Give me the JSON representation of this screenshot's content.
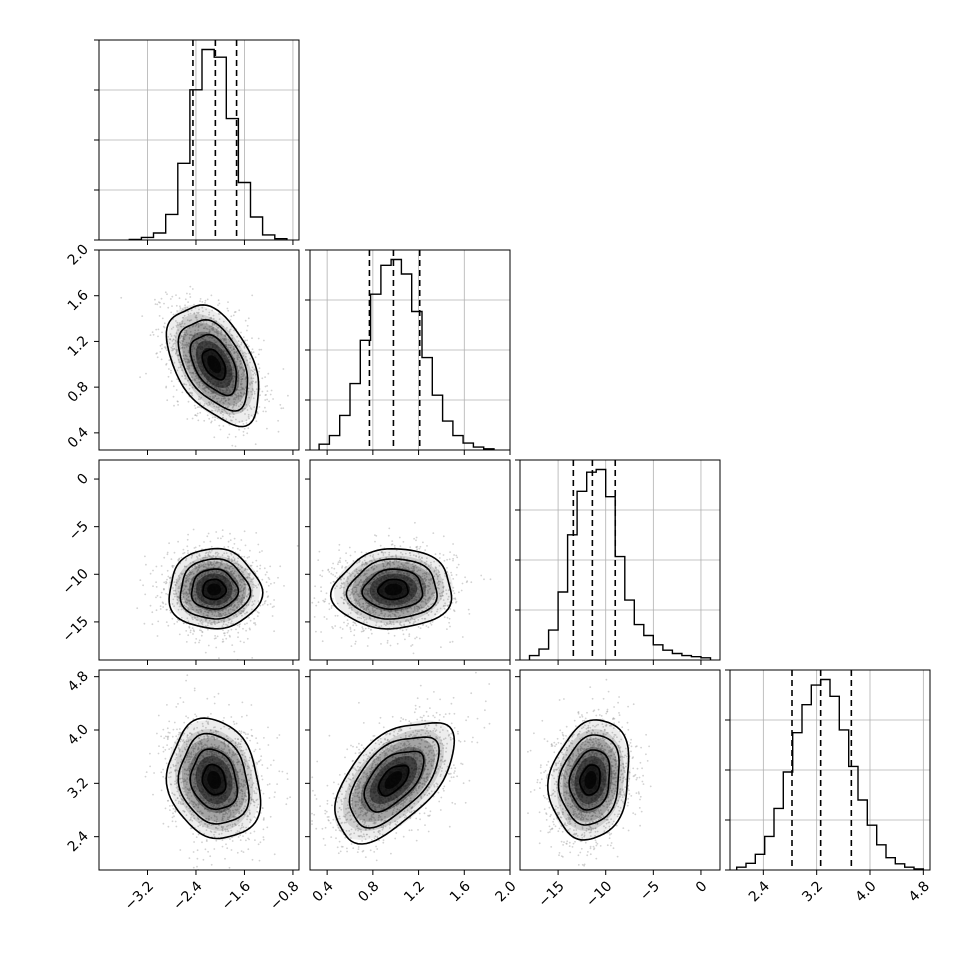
{
  "chart_data": {
    "type": "corner",
    "title": "",
    "grid": true,
    "n_params": 4,
    "params": [
      {
        "range": [
          -4.0,
          -0.7
        ],
        "ticks": [
          -3.2,
          -2.4,
          -1.6,
          -0.8
        ],
        "tick_labels": [
          "−3.2",
          "−2.4",
          "−1.6",
          "−0.8"
        ],
        "quantiles": [
          -2.45,
          -2.08,
          -1.73
        ]
      },
      {
        "range": [
          0.25,
          2.0
        ],
        "ticks": [
          0.4,
          0.8,
          1.2,
          1.6,
          2.0
        ],
        "tick_labels": [
          "0.4",
          "0.8",
          "1.2",
          "1.6",
          "2.0"
        ],
        "quantiles": [
          0.77,
          0.98,
          1.21
        ]
      },
      {
        "range": [
          -19.0,
          2.0
        ],
        "ticks": [
          -15,
          -10,
          -5,
          0
        ],
        "tick_labels": [
          "−15",
          "−10",
          "−5",
          "0"
        ],
        "quantiles": [
          -13.4,
          -11.4,
          -9.0
        ]
      },
      {
        "range": [
          1.9,
          4.9
        ],
        "ticks": [
          2.4,
          3.2,
          4.0,
          4.8
        ],
        "tick_labels": [
          "2.4",
          "3.2",
          "4.0",
          "4.8"
        ],
        "quantiles": [
          2.83,
          3.26,
          3.72
        ]
      }
    ],
    "histograms": [
      {
        "param": 0,
        "edges": [
          -3.5,
          -3.3,
          -3.1,
          -2.9,
          -2.7,
          -2.5,
          -2.3,
          -2.1,
          -1.9,
          -1.7,
          -1.5,
          -1.3,
          -1.1,
          -0.9
        ],
        "counts": [
          1,
          4,
          11,
          40,
          120,
          235,
          298,
          286,
          190,
          90,
          36,
          8,
          2
        ]
      },
      {
        "param": 1,
        "edges": [
          0.33,
          0.42,
          0.51,
          0.6,
          0.69,
          0.78,
          0.87,
          0.96,
          1.05,
          1.14,
          1.23,
          1.32,
          1.41,
          1.5,
          1.59,
          1.68,
          1.77,
          1.86
        ],
        "counts": [
          10,
          25,
          60,
          115,
          190,
          270,
          320,
          330,
          305,
          240,
          160,
          95,
          50,
          25,
          12,
          5,
          2
        ]
      },
      {
        "param": 2,
        "edges": [
          -18,
          -17,
          -16,
          -15,
          -14,
          -13,
          -12,
          -11,
          -10,
          -9,
          -8,
          -7,
          -6,
          -5,
          -4,
          -3,
          -2,
          -1,
          0,
          1
        ],
        "counts": [
          8,
          20,
          55,
          125,
          230,
          310,
          345,
          350,
          300,
          190,
          110,
          65,
          45,
          28,
          18,
          12,
          8,
          6,
          4
        ]
      },
      {
        "param": 3,
        "edges": [
          2.0,
          2.14,
          2.28,
          2.42,
          2.56,
          2.7,
          2.84,
          2.98,
          3.12,
          3.26,
          3.4,
          3.54,
          3.68,
          3.82,
          3.96,
          4.1,
          4.24,
          4.38,
          4.52,
          4.66,
          4.8
        ],
        "counts": [
          5,
          12,
          28,
          60,
          110,
          175,
          245,
          295,
          330,
          340,
          310,
          250,
          185,
          125,
          80,
          45,
          22,
          11,
          5,
          2
        ]
      }
    ],
    "pairs": [
      {
        "x": 0,
        "y": 1,
        "mean": [
          -2.1,
          1.0
        ],
        "std": [
          0.38,
          0.26
        ],
        "rho": -0.45
      },
      {
        "x": 0,
        "y": 2,
        "mean": [
          -2.1,
          -11.6
        ],
        "std": [
          0.38,
          2.1
        ],
        "rho": 0.0
      },
      {
        "x": 1,
        "y": 2,
        "mean": [
          0.98,
          -11.6
        ],
        "std": [
          0.26,
          2.1
        ],
        "rho": 0.05
      },
      {
        "x": 0,
        "y": 3,
        "mean": [
          -2.1,
          3.25
        ],
        "std": [
          0.38,
          0.45
        ],
        "rho": -0.15
      },
      {
        "x": 1,
        "y": 3,
        "mean": [
          0.98,
          3.25
        ],
        "std": [
          0.26,
          0.45
        ],
        "rho": 0.55
      },
      {
        "x": 2,
        "y": 3,
        "mean": [
          -11.6,
          3.25
        ],
        "std": [
          2.1,
          0.45
        ],
        "rho": 0.15
      }
    ],
    "contour_levels_sigma": [
      0.5,
      1.0,
      1.5,
      2.0
    ],
    "colors": {
      "points": "#a6a6a6",
      "density": "#000000",
      "lines": "#000000"
    }
  }
}
